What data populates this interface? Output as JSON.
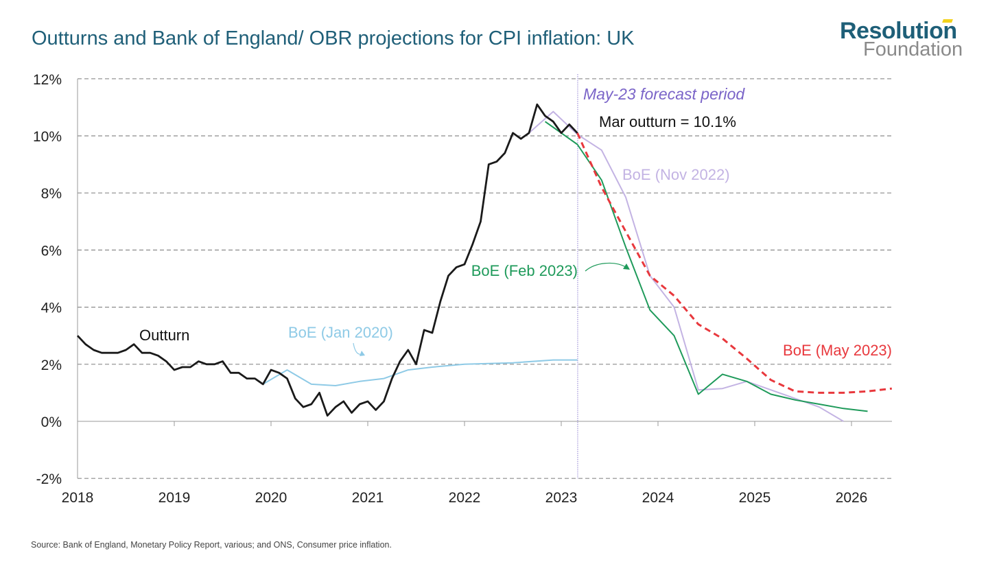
{
  "title": "Outturns and Bank of England/ OBR projections for CPI inflation: UK",
  "logo": {
    "line1": "Resolution",
    "line2": "Foundation"
  },
  "source": "Source: Bank of England, Monetary Policy Report, various; and ONS, Consumer price inflation.",
  "chart_data": {
    "type": "line",
    "title": "Outturns and Bank of England/ OBR projections for CPI inflation: UK",
    "xlabel": "",
    "ylabel": "",
    "xlim": [
      2018,
      2026.42
    ],
    "ylim": [
      -2,
      12
    ],
    "grid": true,
    "x_ticks": [
      2018,
      2019,
      2020,
      2021,
      2022,
      2023,
      2024,
      2025,
      2026
    ],
    "x_tick_labels": [
      "2018",
      "2019",
      "2020",
      "2021",
      "2022",
      "2023",
      "2024",
      "2025",
      "2026"
    ],
    "y_ticks": [
      -2,
      0,
      2,
      4,
      6,
      8,
      10,
      12
    ],
    "y_tick_labels": [
      "-2%",
      "0%",
      "2%",
      "4%",
      "6%",
      "8%",
      "10%",
      "12%"
    ],
    "forecast_line": {
      "x": 2023.17,
      "label": "May-23 forecast period"
    },
    "annotations": [
      "Mar outturn = 10.1%"
    ],
    "series": [
      {
        "name": "Outturn",
        "color": "#1a1a1a",
        "dashed": false,
        "x": [
          2018.0,
          2018.083,
          2018.167,
          2018.25,
          2018.333,
          2018.417,
          2018.5,
          2018.583,
          2018.667,
          2018.75,
          2018.833,
          2018.917,
          2019.0,
          2019.083,
          2019.167,
          2019.25,
          2019.333,
          2019.417,
          2019.5,
          2019.583,
          2019.667,
          2019.75,
          2019.833,
          2019.917,
          2020.0,
          2020.083,
          2020.167,
          2020.25,
          2020.333,
          2020.417,
          2020.5,
          2020.583,
          2020.667,
          2020.75,
          2020.833,
          2020.917,
          2021.0,
          2021.083,
          2021.167,
          2021.25,
          2021.333,
          2021.417,
          2021.5,
          2021.583,
          2021.667,
          2021.75,
          2021.833,
          2021.917,
          2022.0,
          2022.083,
          2022.167,
          2022.25,
          2022.333,
          2022.417,
          2022.5,
          2022.583,
          2022.667,
          2022.75,
          2022.833,
          2022.917,
          2023.0,
          2023.083,
          2023.167
        ],
        "y": [
          3.0,
          2.7,
          2.5,
          2.4,
          2.4,
          2.4,
          2.5,
          2.7,
          2.4,
          2.4,
          2.3,
          2.1,
          1.8,
          1.9,
          1.9,
          2.1,
          2.0,
          2.0,
          2.1,
          1.7,
          1.7,
          1.5,
          1.5,
          1.3,
          1.8,
          1.7,
          1.5,
          0.8,
          0.5,
          0.6,
          1.0,
          0.2,
          0.5,
          0.7,
          0.3,
          0.6,
          0.7,
          0.4,
          0.7,
          1.5,
          2.1,
          2.5,
          2.0,
          3.2,
          3.1,
          4.2,
          5.1,
          5.4,
          5.5,
          6.2,
          7.0,
          9.0,
          9.1,
          9.4,
          10.1,
          9.9,
          10.1,
          11.1,
          10.7,
          10.5,
          10.1,
          10.4,
          10.1
        ]
      },
      {
        "name": "BoE (Jan 2020)",
        "color": "#8ecae6",
        "dashed": false,
        "x": [
          2019.917,
          2020.167,
          2020.417,
          2020.667,
          2020.917,
          2021.167,
          2021.417,
          2021.667,
          2022.0,
          2022.5,
          2022.917,
          2023.167
        ],
        "y": [
          1.3,
          1.8,
          1.3,
          1.25,
          1.4,
          1.5,
          1.8,
          1.9,
          2.0,
          2.05,
          2.15,
          2.15
        ]
      },
      {
        "name": "BoE (Nov 2022)",
        "color": "#c3b3e3",
        "dashed": false,
        "x": [
          2022.667,
          2022.917,
          2023.167,
          2023.417,
          2023.667,
          2023.917,
          2024.167,
          2024.417,
          2024.667,
          2024.917,
          2025.167,
          2025.417,
          2025.667,
          2025.917
        ],
        "y": [
          10.1,
          10.85,
          10.05,
          9.5,
          7.85,
          5.1,
          4.0,
          1.1,
          1.15,
          1.4,
          1.1,
          0.8,
          0.5,
          0.0
        ]
      },
      {
        "name": "BoE (Feb 2023)",
        "color": "#1e9a5a",
        "dashed": false,
        "x": [
          2022.833,
          2022.917,
          2023.0,
          2023.167,
          2023.417,
          2023.667,
          2023.917,
          2024.167,
          2024.417,
          2024.667,
          2024.917,
          2025.167,
          2025.417,
          2025.667,
          2025.917,
          2026.167
        ],
        "y": [
          10.5,
          10.3,
          10.1,
          9.7,
          8.45,
          6.1,
          3.9,
          3.0,
          0.95,
          1.65,
          1.4,
          0.95,
          0.75,
          0.6,
          0.45,
          0.35
        ]
      },
      {
        "name": "BoE (May 2023)",
        "color": "#e8383d",
        "dashed": true,
        "x": [
          2023.167,
          2023.417,
          2023.667,
          2023.917,
          2024.167,
          2024.417,
          2024.667,
          2024.917,
          2025.167,
          2025.417,
          2025.667,
          2025.917,
          2026.167,
          2026.417
        ],
        "y": [
          10.1,
          8.2,
          6.65,
          5.1,
          4.4,
          3.4,
          2.9,
          2.2,
          1.45,
          1.05,
          1.0,
          1.0,
          1.05,
          1.15
        ]
      }
    ]
  }
}
